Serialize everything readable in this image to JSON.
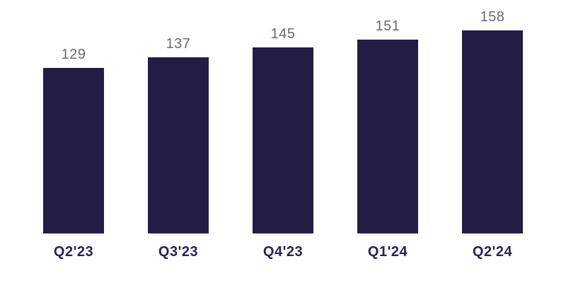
{
  "chart_data": {
    "type": "bar",
    "categories": [
      "Q2'23",
      "Q3'23",
      "Q4'23",
      "Q1'24",
      "Q2'24"
    ],
    "values": [
      129,
      137,
      145,
      151,
      158
    ],
    "title": "",
    "xlabel": "",
    "ylabel": "",
    "ylim": [
      0,
      160
    ],
    "grid": false,
    "legend": "none",
    "axes_visible": false,
    "bar_color": "#241C45",
    "value_label_color": "#6B6B6B",
    "category_label_color": "#2A2353",
    "background_color": "#FFFFFF"
  }
}
